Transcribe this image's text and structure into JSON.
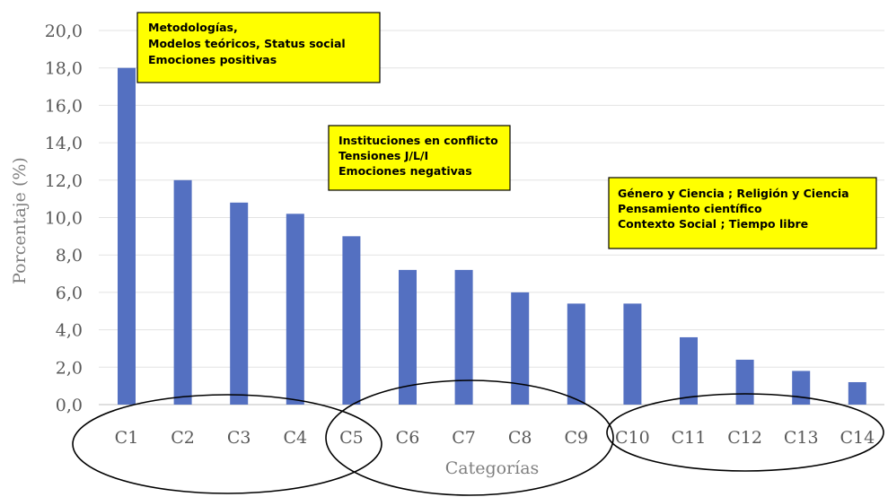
{
  "chart_data": {
    "type": "bar",
    "categories": [
      "C1",
      "C2",
      "C3",
      "C4",
      "C5",
      "C6",
      "C7",
      "C8",
      "C9",
      "C10",
      "C11",
      "C12",
      "C13",
      "C14"
    ],
    "values": [
      18.0,
      12.0,
      10.8,
      10.2,
      9.0,
      7.2,
      7.2,
      6.0,
      5.4,
      5.4,
      3.6,
      2.4,
      1.8,
      1.2
    ],
    "yticks": [
      "0,0",
      "2,0",
      "4,0",
      "6,0",
      "8,0",
      "10,0",
      "12,0",
      "14,0",
      "16,0",
      "18,0",
      "20,0"
    ],
    "xlabel": "Categorías",
    "ylabel": "Porcentaje (%)",
    "ylim": [
      0,
      20
    ],
    "grid": true,
    "bar_color": "#5470c1",
    "annotations": [
      {
        "lines": [
          "Metodologías,",
          "Modelos teóricos, Status social",
          "Emociones positivas"
        ]
      },
      {
        "lines": [
          "Instituciones en conflicto",
          "Tensiones J/L/I",
          "Emociones negativas"
        ]
      },
      {
        "lines": [
          "Género y Ciencia ; Religión y Ciencia",
          "Pensamiento científico",
          "Contexto Social ; Tiempo libre"
        ]
      }
    ],
    "annotation_color": "#ffff00"
  }
}
